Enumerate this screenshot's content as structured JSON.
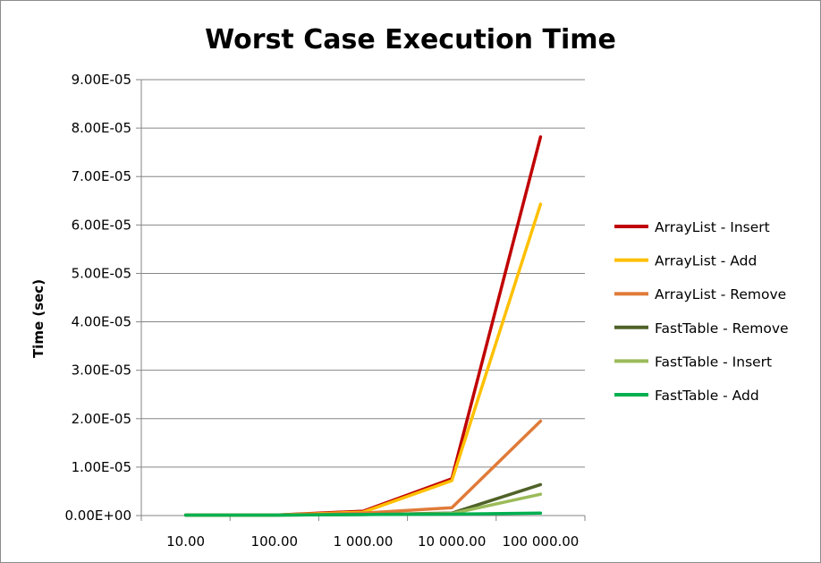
{
  "chart_data": {
    "type": "line",
    "title": "Worst Case Execution Time",
    "ylabel": "Time (sec)",
    "xlabel": "",
    "categories": [
      "10.00",
      "100.00",
      "1 000.00",
      "10 000.00",
      "100 000.00"
    ],
    "yticks": [
      "0.00E+00",
      "1.00E-05",
      "2.00E-05",
      "3.00E-05",
      "4.00E-05",
      "5.00E-05",
      "6.00E-05",
      "7.00E-05",
      "8.00E-05",
      "9.00E-05"
    ],
    "ylim": [
      0,
      9e-05
    ],
    "grid": true,
    "legend_position": "right",
    "series": [
      {
        "name": "ArrayList - Insert",
        "color": "#c00000",
        "values": [
          1e-07,
          1e-07,
          9e-07,
          7.6e-06,
          7.82e-05
        ]
      },
      {
        "name": "ArrayList - Add",
        "color": "#ffc000",
        "values": [
          1e-07,
          1e-07,
          7e-07,
          7.2e-06,
          6.43e-05
        ]
      },
      {
        "name": "ArrayList - Remove",
        "color": "#e07b39",
        "values": [
          1e-07,
          1e-07,
          5e-07,
          1.6e-06,
          1.95e-05
        ]
      },
      {
        "name": "FastTable - Remove",
        "color": "#4f6228",
        "values": [
          1e-07,
          1e-07,
          2e-07,
          5e-07,
          6.4e-06
        ]
      },
      {
        "name": "FastTable - Insert",
        "color": "#9bbb59",
        "values": [
          1e-07,
          1e-07,
          2e-07,
          4e-07,
          4.4e-06
        ]
      },
      {
        "name": "FastTable - Add",
        "color": "#00b050",
        "values": [
          1e-07,
          1e-07,
          2e-07,
          3e-07,
          5e-07
        ]
      }
    ]
  }
}
